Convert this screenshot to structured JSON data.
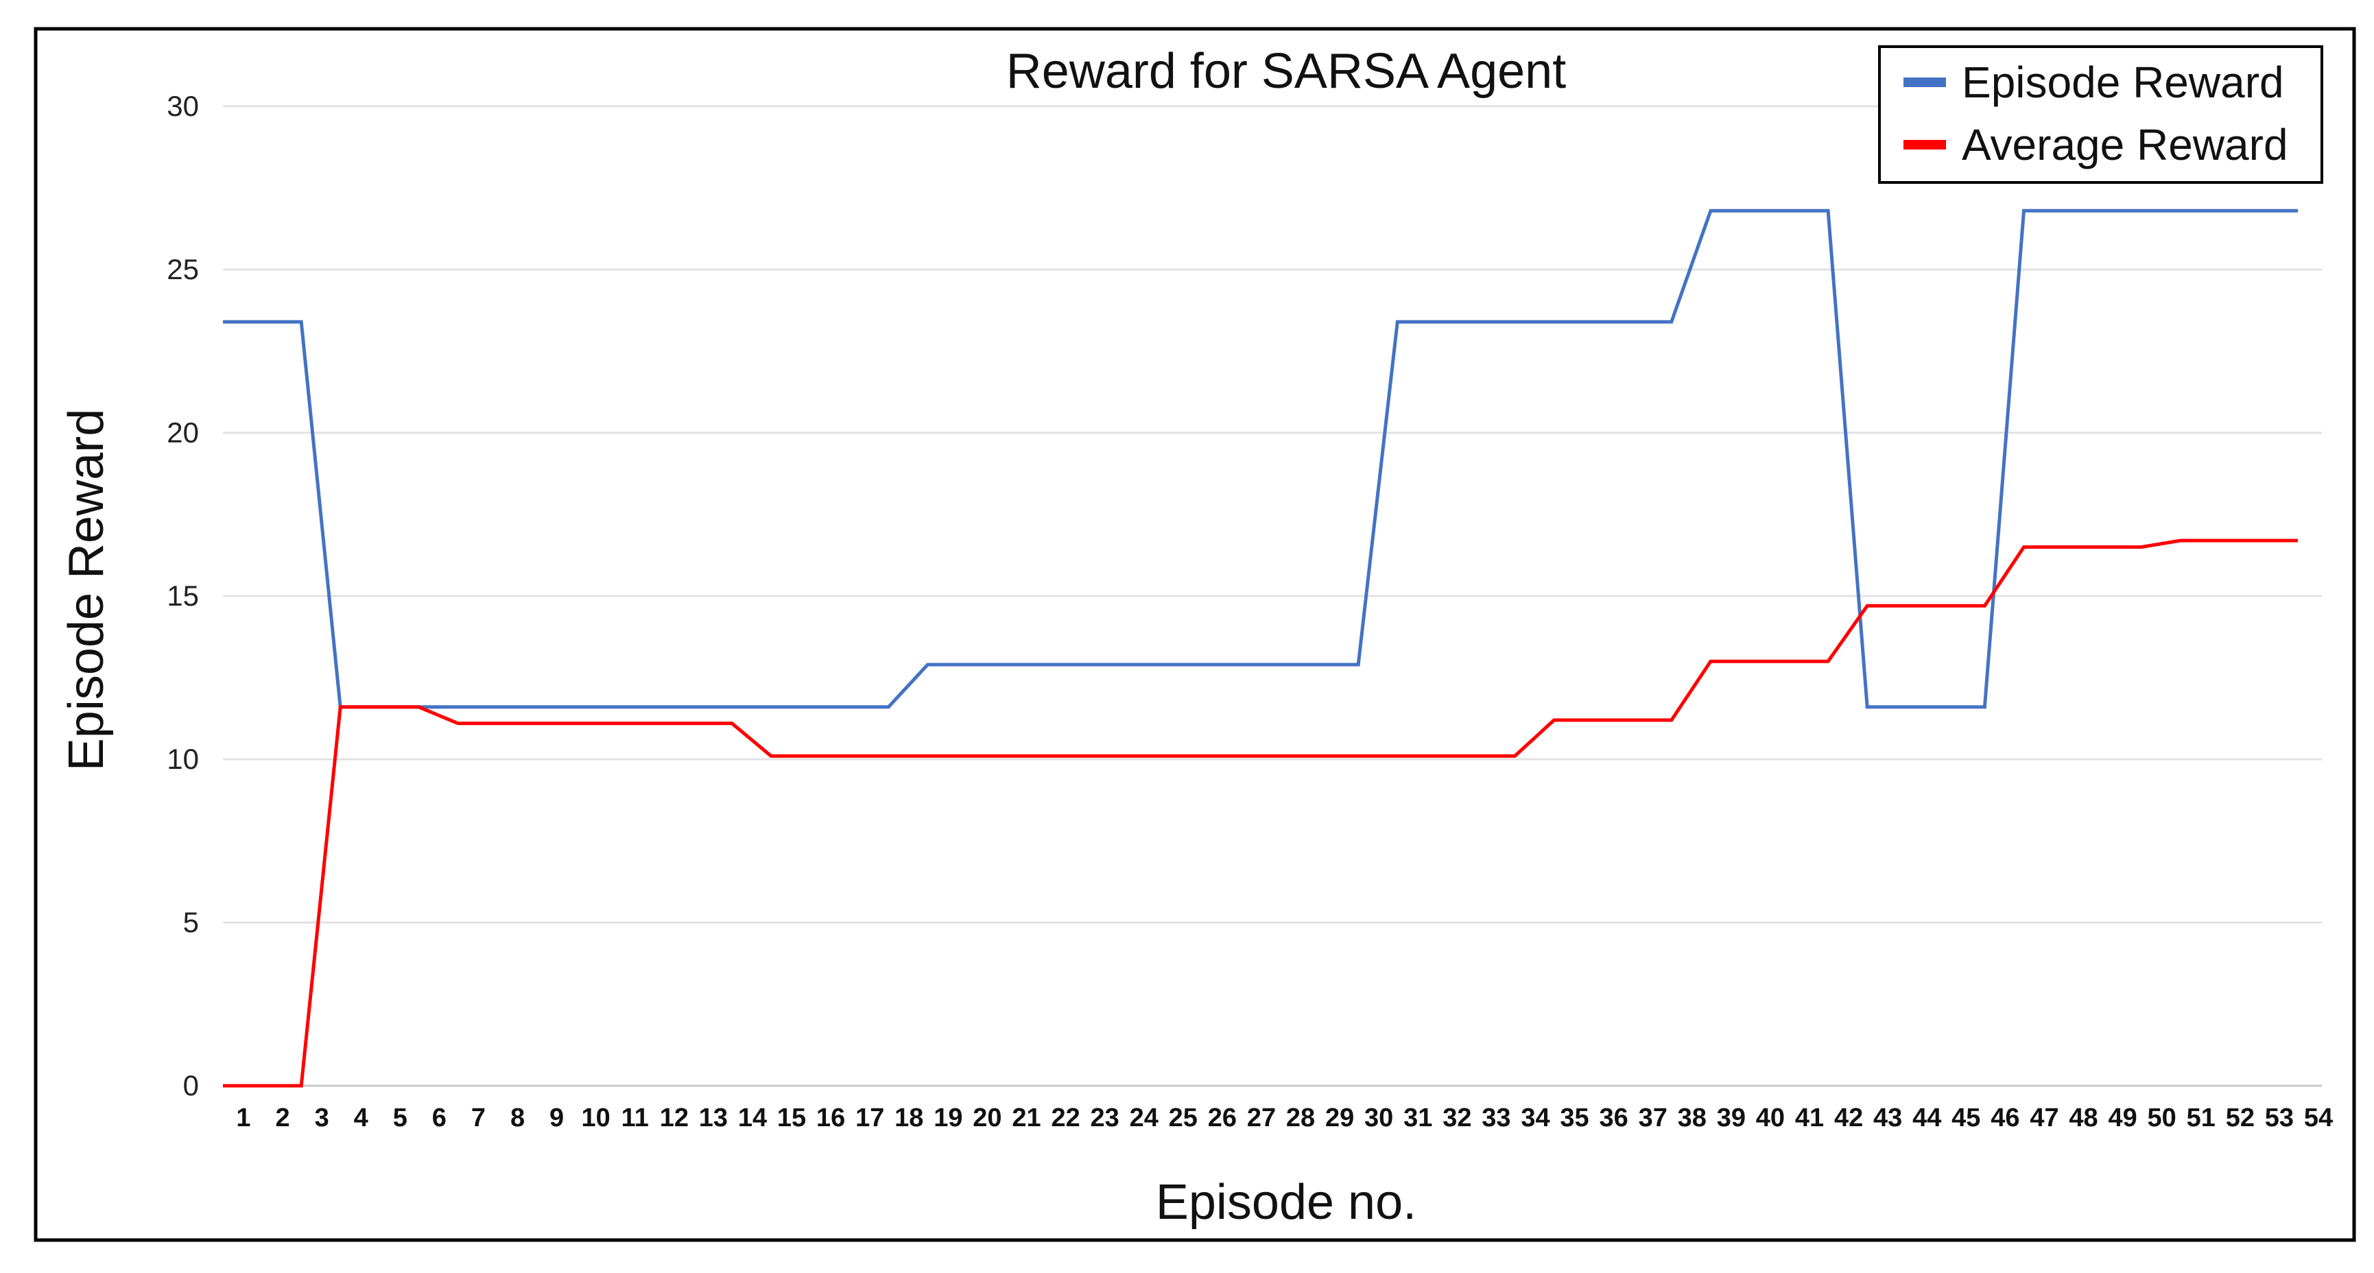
{
  "chart_data": {
    "type": "line",
    "title": "Reward for SARSA Agent",
    "xlabel": "Episode no.",
    "ylabel": "Episode Reward",
    "ylim": [
      0,
      30
    ],
    "yticks": [
      0,
      5,
      10,
      15,
      20,
      25,
      30
    ],
    "categories": [
      "1",
      "2",
      "3",
      "4",
      "5",
      "6",
      "7",
      "8",
      "9",
      "10",
      "11",
      "12",
      "13",
      "14",
      "15",
      "16",
      "17",
      "18",
      "19",
      "20",
      "21",
      "22",
      "23",
      "24",
      "25",
      "26",
      "27",
      "28",
      "29",
      "30",
      "31",
      "32",
      "33",
      "34",
      "35",
      "36",
      "37",
      "38",
      "39",
      "40",
      "41",
      "42",
      "43",
      "44",
      "45",
      "46",
      "47",
      "48",
      "49",
      "50",
      "51",
      "52",
      "53",
      "54"
    ],
    "grid": "horizontal",
    "legend_position": "top-right",
    "series": [
      {
        "name": "Episode Reward",
        "color": "#4472c4",
        "values": [
          23.4,
          23.4,
          23.4,
          11.6,
          11.6,
          11.6,
          11.6,
          11.6,
          11.6,
          11.6,
          11.6,
          11.6,
          11.6,
          11.6,
          11.6,
          11.6,
          11.6,
          11.6,
          12.9,
          12.9,
          12.9,
          12.9,
          12.9,
          12.9,
          12.9,
          12.9,
          12.9,
          12.9,
          12.9,
          12.9,
          23.4,
          23.4,
          23.4,
          23.4,
          23.4,
          23.4,
          23.4,
          23.4,
          26.8,
          26.8,
          26.8,
          26.8,
          11.6,
          11.6,
          11.6,
          11.6,
          26.8,
          26.8,
          26.8,
          26.8,
          26.8,
          26.8,
          26.8,
          26.8
        ]
      },
      {
        "name": "Average Reward",
        "color": "#ff0000",
        "values": [
          0,
          0,
          0,
          11.6,
          11.6,
          11.6,
          11.1,
          11.1,
          11.1,
          11.1,
          11.1,
          11.1,
          11.1,
          11.1,
          10.1,
          10.1,
          10.1,
          10.1,
          10.1,
          10.1,
          10.1,
          10.1,
          10.1,
          10.1,
          10.1,
          10.1,
          10.1,
          10.1,
          10.1,
          10.1,
          10.1,
          10.1,
          10.1,
          10.1,
          11.2,
          11.2,
          11.2,
          11.2,
          13.0,
          13.0,
          13.0,
          13.0,
          14.7,
          14.7,
          14.7,
          14.7,
          16.5,
          16.5,
          16.5,
          16.5,
          16.7,
          16.7,
          16.7,
          16.7
        ]
      }
    ]
  }
}
